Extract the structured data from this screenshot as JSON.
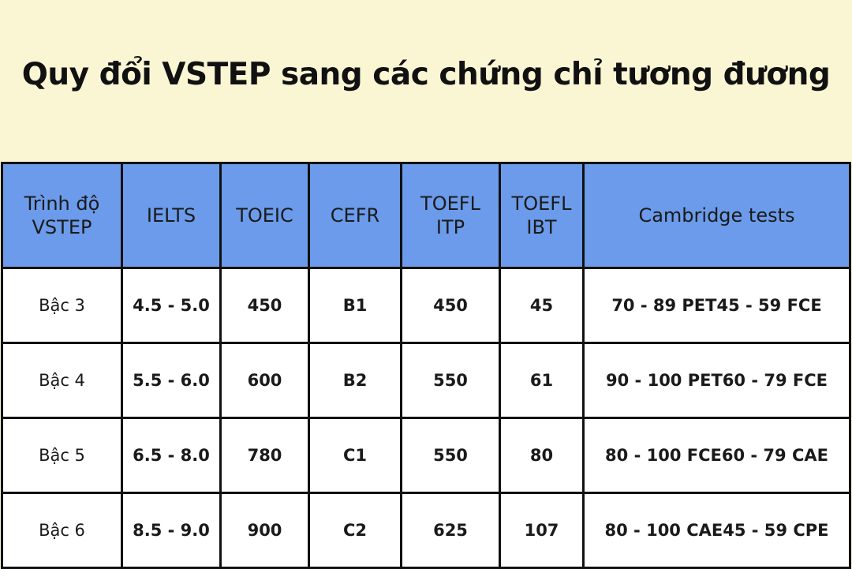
{
  "title": "Quy đổi VSTEP sang các chứng chỉ tương đương",
  "header_color": "#6b9bea",
  "background_color": "#faf6d4",
  "table": {
    "headers": [
      "Trình độ VSTEP",
      "IELTS",
      "TOEIC",
      "CEFR",
      "TOEFL ITP",
      "TOEFL IBT",
      "Cambridge tests"
    ],
    "rows": [
      [
        "Bậc 3",
        "4.5 - 5.0",
        "450",
        "B1",
        "450",
        "45",
        "70 - 89 PET45 - 59 FCE"
      ],
      [
        "Bậc 4",
        "5.5 - 6.0",
        "600",
        "B2",
        "550",
        "61",
        "90 - 100 PET60 - 79 FCE"
      ],
      [
        "Bậc 5",
        "6.5 - 8.0",
        "780",
        "C1",
        "550",
        "80",
        "80 - 100 FCE60 - 79 CAE"
      ],
      [
        "Bậc 6",
        "8.5 - 9.0",
        "900",
        "C2",
        "625",
        "107",
        "80 - 100 CAE45 - 59 CPE"
      ]
    ]
  }
}
